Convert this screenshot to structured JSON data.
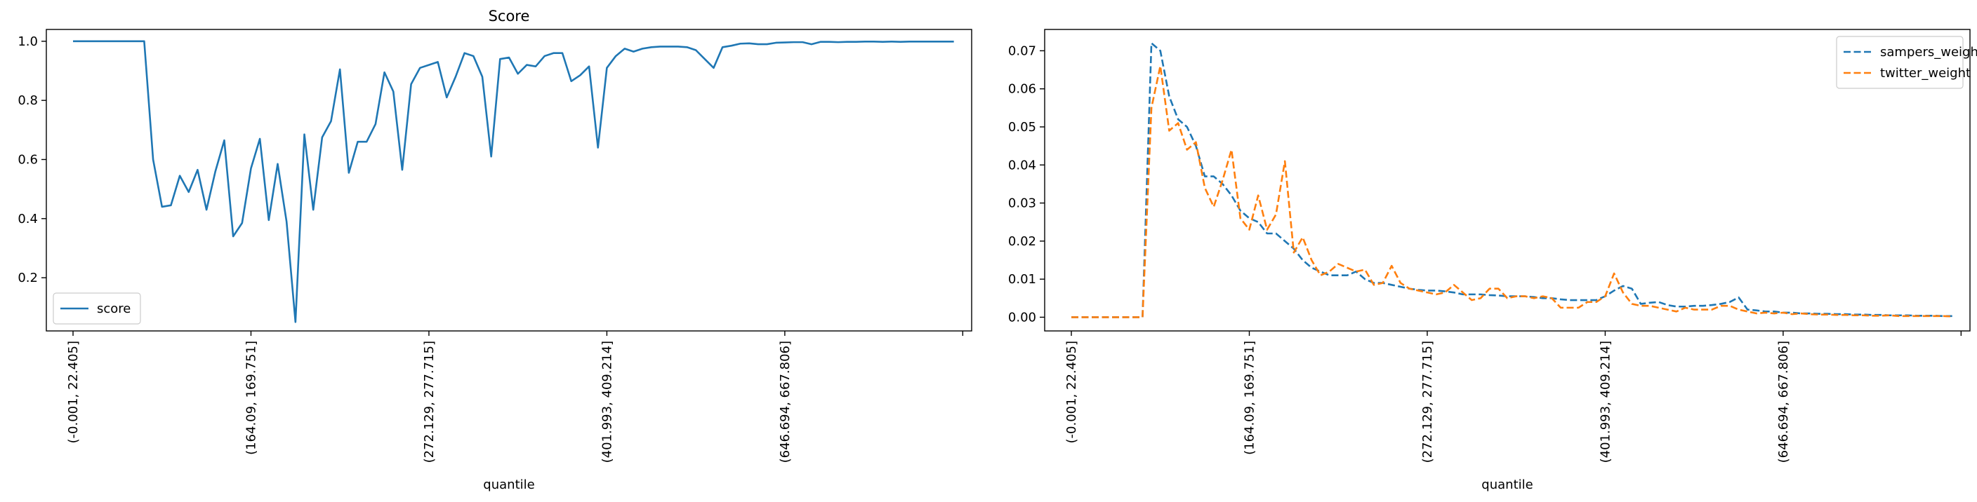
{
  "chart_data": [
    {
      "type": "line",
      "title": "Score",
      "xlabel": "quantile",
      "ylabel": "",
      "xlim": [
        -3,
        101
      ],
      "ylim": [
        0.02,
        1.04
      ],
      "yticks": [
        0.2,
        0.4,
        0.6,
        0.8,
        1.0
      ],
      "ytick_labels": [
        "0.2",
        "0.4",
        "0.6",
        "0.8",
        "1.0"
      ],
      "xticks": [
        0,
        20,
        40,
        60,
        80,
        100
      ],
      "xtick_labels": [
        "(-0.001, 22.405]",
        "(164.09, 169.751]",
        "(272.129, 277.715]",
        "(401.993, 409.214]",
        "(646.694, 667.806]",
        ""
      ],
      "legend": {
        "position": "lower-left"
      },
      "series": [
        {
          "name": "score",
          "color": "#1f77b4",
          "dash": "solid",
          "values": [
            1.0,
            1.0,
            1.0,
            1.0,
            1.0,
            1.0,
            1.0,
            1.0,
            1.0,
            0.6,
            0.44,
            0.445,
            0.545,
            0.49,
            0.565,
            0.43,
            0.56,
            0.665,
            0.34,
            0.385,
            0.57,
            0.67,
            0.395,
            0.585,
            0.39,
            0.05,
            0.685,
            0.43,
            0.675,
            0.73,
            0.905,
            0.555,
            0.66,
            0.66,
            0.72,
            0.895,
            0.83,
            0.565,
            0.855,
            0.91,
            0.92,
            0.93,
            0.81,
            0.88,
            0.96,
            0.95,
            0.88,
            0.61,
            0.94,
            0.945,
            0.89,
            0.92,
            0.915,
            0.95,
            0.96,
            0.96,
            0.865,
            0.885,
            0.915,
            0.64,
            0.91,
            0.95,
            0.975,
            0.965,
            0.975,
            0.98,
            0.982,
            0.982,
            0.982,
            0.98,
            0.97,
            0.94,
            0.91,
            0.98,
            0.985,
            0.992,
            0.993,
            0.99,
            0.99,
            0.995,
            0.996,
            0.997,
            0.997,
            0.99,
            0.998,
            0.998,
            0.997,
            0.998,
            0.998,
            0.999,
            0.999,
            0.998,
            0.999,
            0.998,
            0.999,
            0.999,
            0.999,
            0.999,
            0.999,
            0.999
          ]
        }
      ]
    },
    {
      "type": "line",
      "title": "",
      "xlabel": "quantile",
      "ylabel": "",
      "xlim": [
        -3,
        101
      ],
      "ylim": [
        -0.0036,
        0.0756
      ],
      "yticks": [
        0.0,
        0.01,
        0.02,
        0.03,
        0.04,
        0.05,
        0.06,
        0.07
      ],
      "ytick_labels": [
        "0.00",
        "0.01",
        "0.02",
        "0.03",
        "0.04",
        "0.05",
        "0.06",
        "0.07"
      ],
      "xticks": [
        0,
        20,
        40,
        60,
        80,
        100
      ],
      "xtick_labels": [
        "(-0.001, 22.405]",
        "(164.09, 169.751]",
        "(272.129, 277.715]",
        "(401.993, 409.214]",
        "(646.694, 667.806]",
        ""
      ],
      "legend": {
        "position": "upper-right"
      },
      "series": [
        {
          "name": "sampers_weight",
          "color": "#1f77b4",
          "dash": "dashed",
          "values": [
            0.0,
            0.0,
            0.0,
            0.0,
            0.0,
            0.0,
            0.0,
            0.0,
            0.0,
            0.072,
            0.07,
            0.058,
            0.052,
            0.05,
            0.045,
            0.037,
            0.037,
            0.035,
            0.032,
            0.028,
            0.026,
            0.025,
            0.022,
            0.022,
            0.02,
            0.018,
            0.015,
            0.013,
            0.012,
            0.011,
            0.011,
            0.011,
            0.012,
            0.01,
            0.009,
            0.009,
            0.0085,
            0.008,
            0.0075,
            0.0072,
            0.007,
            0.007,
            0.0068,
            0.0065,
            0.006,
            0.006,
            0.006,
            0.0058,
            0.0057,
            0.0055,
            0.0055,
            0.0055,
            0.0053,
            0.005,
            0.005,
            0.0047,
            0.0045,
            0.0045,
            0.0045,
            0.0045,
            0.0055,
            0.007,
            0.0082,
            0.0075,
            0.0035,
            0.0038,
            0.004,
            0.0032,
            0.0028,
            0.0028,
            0.003,
            0.003,
            0.0032,
            0.0035,
            0.004,
            0.0052,
            0.002,
            0.0018,
            0.0015,
            0.0015,
            0.0012,
            0.0012,
            0.001,
            0.001,
            0.0009,
            0.0009,
            0.0008,
            0.0008,
            0.0007,
            0.0007,
            0.0006,
            0.0006,
            0.0005,
            0.0005,
            0.0005,
            0.0004,
            0.0004,
            0.0004,
            0.0003,
            0.0003
          ]
        },
        {
          "name": "twitter_weight",
          "color": "#ff7f0e",
          "dash": "dashed",
          "values": [
            0.0,
            0.0,
            0.0,
            0.0,
            0.0,
            0.0,
            0.0,
            0.0,
            0.0,
            0.055,
            0.066,
            0.049,
            0.051,
            0.044,
            0.046,
            0.034,
            0.029,
            0.036,
            0.044,
            0.026,
            0.023,
            0.032,
            0.023,
            0.027,
            0.041,
            0.017,
            0.021,
            0.015,
            0.011,
            0.012,
            0.014,
            0.013,
            0.012,
            0.0125,
            0.0085,
            0.009,
            0.0135,
            0.009,
            0.0075,
            0.007,
            0.0065,
            0.006,
            0.0065,
            0.0085,
            0.0065,
            0.0045,
            0.005,
            0.0075,
            0.0075,
            0.005,
            0.0055,
            0.0055,
            0.005,
            0.0055,
            0.005,
            0.0025,
            0.0025,
            0.0025,
            0.004,
            0.004,
            0.0055,
            0.0115,
            0.0065,
            0.0035,
            0.003,
            0.003,
            0.0025,
            0.002,
            0.0015,
            0.0025,
            0.002,
            0.002,
            0.002,
            0.003,
            0.003,
            0.002,
            0.0015,
            0.001,
            0.0012,
            0.001,
            0.0012,
            0.0008,
            0.001,
            0.0008,
            0.0007,
            0.0007,
            0.0006,
            0.0006,
            0.0005,
            0.0005,
            0.0004,
            0.0004,
            0.0005,
            0.0003,
            0.0003,
            0.0003,
            0.0003,
            0.0003,
            0.0003,
            0.0002
          ]
        }
      ]
    }
  ]
}
